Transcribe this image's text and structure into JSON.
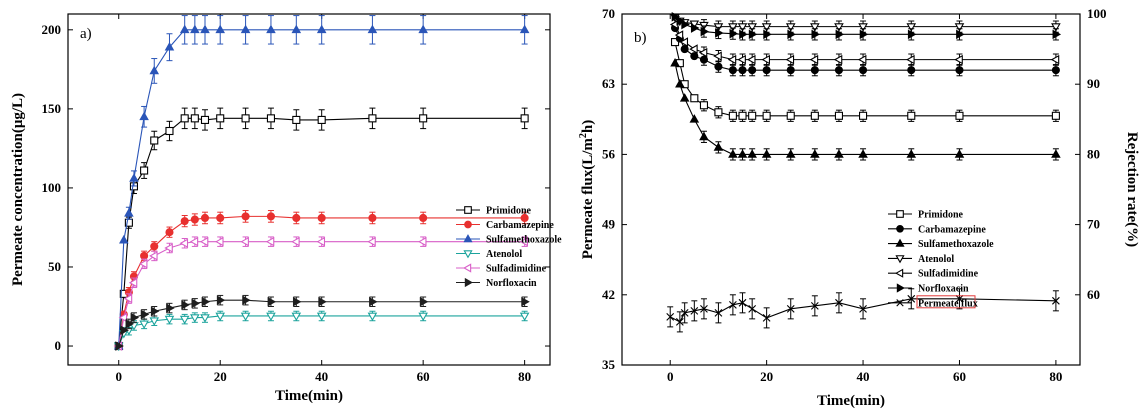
{
  "chart_data": [
    {
      "type": "line",
      "panel_label": "a)",
      "xlabel": "Time(min)",
      "ylabel": "Permeate concentration(μg/L)",
      "xlim": [
        -10,
        85
      ],
      "ylim": [
        -12,
        210
      ],
      "xticks": [
        0,
        20,
        40,
        60,
        80
      ],
      "yticks": [
        0,
        50,
        100,
        150,
        200
      ],
      "legend_position": "center-right",
      "x": [
        0,
        1,
        2,
        3,
        5,
        7,
        10,
        13,
        15,
        17,
        20,
        25,
        30,
        35,
        40,
        50,
        60,
        80
      ],
      "series": [
        {
          "name": "Primidone",
          "marker": "open-square",
          "color": "#000000",
          "values": [
            0,
            33,
            78,
            101,
            111,
            130,
            136,
            144,
            144,
            143,
            144,
            144,
            144,
            143,
            143,
            144,
            144,
            144
          ]
        },
        {
          "name": "Carbamazepine",
          "marker": "filled-circle",
          "color": "#e8302f",
          "values": [
            0,
            20,
            34,
            44,
            57,
            63,
            72,
            79,
            80,
            81,
            81,
            82,
            82,
            81,
            81,
            81,
            81,
            81
          ]
        },
        {
          "name": "Sulfamethoxazole",
          "marker": "filled-triangle-up",
          "color": "#2a55b8",
          "values": [
            0,
            67,
            84,
            106,
            145,
            174,
            189,
            200,
            200,
            200,
            200,
            200,
            200,
            200,
            200,
            200,
            200,
            200
          ]
        },
        {
          "name": "Atenolol",
          "marker": "open-triangle-down",
          "color": "#1ba39c",
          "values": [
            0,
            8,
            10,
            13,
            14,
            16,
            17,
            17,
            18,
            18,
            19,
            19,
            19,
            19,
            19,
            19,
            19,
            19
          ]
        },
        {
          "name": "Sulfadimidine",
          "marker": "open-triangle-left",
          "color": "#d85fc8",
          "values": [
            0,
            18,
            30,
            40,
            52,
            57,
            62,
            65,
            66,
            66,
            66,
            66,
            66,
            66,
            66,
            66,
            66,
            66
          ]
        },
        {
          "name": "Norfloxacin",
          "marker": "filled-triangle-right",
          "color": "#1e1e1e",
          "values": [
            0,
            10,
            14,
            18,
            20,
            22,
            24,
            26,
            27,
            28,
            29,
            29,
            28,
            28,
            28,
            28,
            28,
            28
          ]
        }
      ]
    },
    {
      "type": "line",
      "panel_label": "b)",
      "xlabel": "Time(min)",
      "ylabel": "Permeate flux(L/m²h)",
      "ylabel_parts": [
        "Permeate flux(L/m",
        "2",
        "h)"
      ],
      "y2label": "Rejection rate(%)",
      "xlim": [
        -10,
        85
      ],
      "ylim": [
        35,
        70
      ],
      "y2lim": [
        50,
        100
      ],
      "xticks": [
        0,
        20,
        40,
        60,
        80
      ],
      "yticks": [
        35,
        42,
        49,
        56,
        63,
        70
      ],
      "y2ticks": [
        60,
        70,
        80,
        90,
        100
      ],
      "legend_position": "lower-right",
      "x": [
        1,
        2,
        3,
        5,
        7,
        10,
        13,
        15,
        17,
        20,
        25,
        30,
        35,
        40,
        50,
        60,
        80
      ],
      "flux": {
        "name": "Permeate flux",
        "marker": "x-mark",
        "color": "#000000",
        "x": [
          0,
          2,
          3,
          5,
          7,
          10,
          13,
          15,
          17,
          20,
          25,
          30,
          35,
          40,
          50,
          60,
          80
        ],
        "values": [
          39.8,
          39.3,
          40.2,
          40.4,
          40.6,
          40.2,
          41.0,
          41.2,
          40.6,
          39.7,
          40.6,
          40.9,
          41.2,
          40.6,
          41.6,
          41.6,
          41.4
        ]
      },
      "series": [
        {
          "name": "Primidone",
          "marker": "open-square",
          "values": [
            96,
            93,
            90,
            88,
            87,
            86,
            85.5,
            85.5,
            85.5,
            85.5,
            85.5,
            85.5,
            85.5,
            85.5,
            85.5,
            85.5,
            85.5
          ]
        },
        {
          "name": "Carbamazepine",
          "marker": "filled-circle",
          "values": [
            98,
            96.5,
            95,
            94,
            93.5,
            92.5,
            92,
            92,
            92,
            92,
            92,
            92,
            92,
            92,
            92,
            92,
            92
          ]
        },
        {
          "name": "Sulfamethoxazole",
          "marker": "filled-triangle-up",
          "values": [
            93,
            90,
            88,
            85,
            82.5,
            81,
            80,
            80,
            80,
            80,
            80,
            80,
            80,
            80,
            80,
            80,
            80
          ]
        },
        {
          "name": "Atenolol",
          "marker": "open-triangle-down",
          "values": [
            99.5,
            99,
            98.8,
            98.6,
            98.4,
            98.2,
            98.2,
            98.2,
            98.2,
            98.2,
            98.2,
            98.2,
            98.2,
            98.2,
            98.2,
            98.2,
            98.2
          ]
        },
        {
          "name": "Sulfadimidine",
          "marker": "open-triangle-left",
          "values": [
            98.5,
            97,
            96,
            95,
            94.5,
            94,
            93.5,
            93.5,
            93.5,
            93.5,
            93.5,
            93.5,
            93.5,
            93.5,
            93.5,
            93.5,
            93.5
          ]
        },
        {
          "name": "Norfloxacin",
          "marker": "filled-triangle-right",
          "values": [
            99.6,
            99,
            98.5,
            98,
            97.5,
            97.3,
            97.2,
            97.1,
            97.1,
            97.1,
            97.1,
            97.1,
            97.1,
            97.1,
            97.1,
            97.1,
            97.1
          ]
        }
      ]
    }
  ]
}
